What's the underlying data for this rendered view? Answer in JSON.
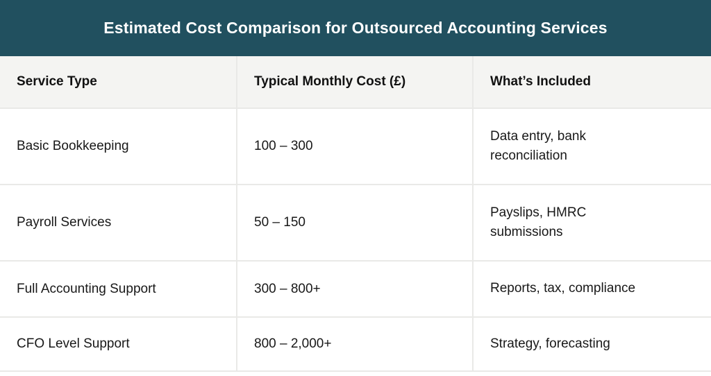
{
  "banner": {
    "title": "Estimated Cost Comparison for Outsourced Accounting Services",
    "bg_color": "#21505F",
    "text_color": "#ffffff"
  },
  "table": {
    "columns": [
      {
        "label": "Service Type"
      },
      {
        "label": "Typical Monthly Cost (£)"
      },
      {
        "label": "What’s Included"
      }
    ],
    "rows": [
      {
        "service": "Basic Bookkeeping",
        "cost": "100 – 300",
        "included": "Data entry, bank reconciliation"
      },
      {
        "service": "Payroll Services",
        "cost": "50 – 150",
        "included": "Payslips, HMRC submissions"
      },
      {
        "service": "Full Accounting Support",
        "cost": "300 – 800+",
        "included": "Reports, tax, compliance"
      },
      {
        "service": "CFO Level Support",
        "cost": "800 – 2,000+",
        "included": "Strategy, forecasting"
      }
    ],
    "colors": {
      "header_bg": "#F4F4F2",
      "border": "#E9E9E7",
      "body_bg": "#FFFFFF",
      "text": "#181818"
    }
  }
}
